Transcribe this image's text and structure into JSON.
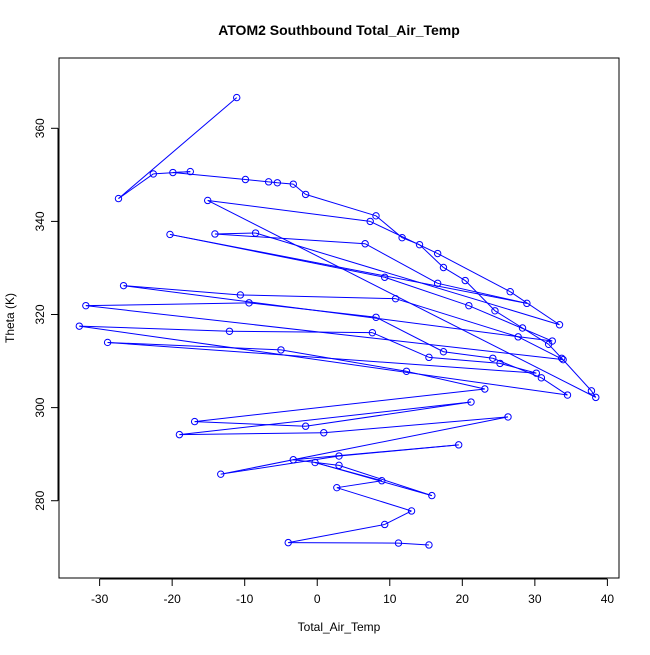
{
  "chart_data": {
    "type": "scatter",
    "title": "ATOM2 Southbound Total_Air_Temp",
    "xlabel": "Total_Air_Temp",
    "ylabel": "Theta (K)",
    "xlim": [
      -35.6,
      41.6
    ],
    "ylim": [
      263.4,
      375.1
    ],
    "x_ticks": [
      -30,
      -20,
      -10,
      0,
      10,
      20,
      30,
      40
    ],
    "y_ticks": [
      280,
      300,
      320,
      340,
      360
    ],
    "connected": true,
    "grid": false,
    "legend": "none",
    "color": "#0000ff",
    "series": [
      {
        "x": [
          -11.1,
          -27.4,
          -22.6,
          -17.5,
          -19.9,
          -9.9,
          -6.7,
          -5.5,
          -3.3,
          -1.6,
          8.1,
          11.7,
          14.1,
          17.4,
          20.4,
          24.5,
          28.3,
          31.9,
          33.7,
          37.8,
          38.4,
          -15.1,
          7.3,
          16.6,
          26.6,
          33.4,
          -8.5,
          -14.1,
          6.6,
          16.6,
          28.9,
          -20.3,
          9.3,
          20.9,
          32.4,
          -26.7,
          -10.6,
          10.8,
          27.7,
          33.9,
          -31.9,
          -9.4,
          8.1,
          17.4,
          24.2,
          30.9,
          34.5,
          -32.8,
          -12.1,
          7.6,
          15.4,
          25.2,
          30.2,
          -28.9,
          -5.0,
          12.3,
          23.1,
          -16.9,
          -1.6,
          21.2,
          -19.0,
          0.9,
          26.3,
          -13.3,
          3.0,
          19.5,
          -3.3,
          3.0,
          15.8,
          -0.3,
          8.9,
          2.7,
          13.0,
          9.3,
          -4.0,
          11.2,
          15.4
        ],
        "y": [
          366.6,
          344.9,
          350.2,
          350.7,
          350.5,
          349.0,
          348.5,
          348.3,
          348.0,
          345.8,
          341.2,
          336.5,
          335.0,
          330.1,
          327.3,
          320.8,
          317.1,
          313.6,
          310.6,
          303.6,
          302.2,
          344.5,
          340.0,
          333.1,
          324.9,
          317.8,
          337.5,
          337.3,
          335.2,
          326.7,
          322.4,
          337.2,
          328.0,
          321.9,
          314.3,
          326.2,
          324.2,
          323.4,
          315.2,
          310.3,
          321.9,
          322.5,
          319.4,
          312.0,
          310.6,
          306.4,
          302.7,
          317.5,
          316.4,
          316.1,
          310.8,
          309.5,
          307.4,
          314.0,
          312.4,
          307.8,
          304.0,
          297.0,
          296.0,
          301.2,
          294.2,
          294.6,
          298.0,
          285.7,
          289.6,
          292.0,
          288.8,
          287.6,
          281.1,
          288.2,
          284.3,
          282.8,
          277.8,
          274.9,
          271.0,
          270.9,
          270.5
        ]
      }
    ]
  }
}
